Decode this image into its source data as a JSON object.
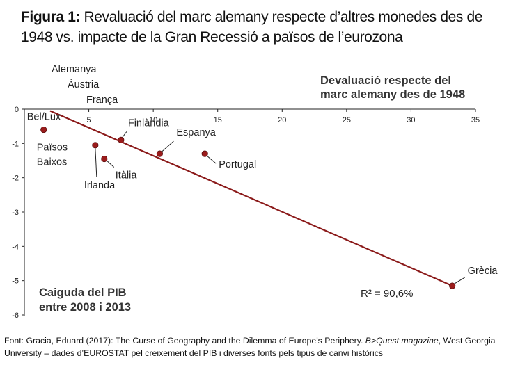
{
  "title": {
    "lead": "Figura 1:",
    "text": "Revaluació del marc alemany respecte d’altres monedes des de 1948 vs. impacte de la Gran Recessió a països de l’eurozona"
  },
  "source": {
    "part1": "Font: Gracia, Eduard (2017): The Curse of Geography and the Dilemma of Europe’s Periphery.",
    "italic": "B>Quest magazine",
    "part2": ", West Georgia University – dades d’EUROSTAT pel creixement del PIB i diverses fonts pels tipus de canvi històrics"
  },
  "chart_data": {
    "type": "scatter",
    "xlabel": "Devaluació respecte del marc alemany des de 1948",
    "ylabel": "Caiguda del PIB entre 2008 i 2013",
    "xlim": [
      0,
      35
    ],
    "ylim": [
      -6,
      0
    ],
    "x_ticks": [
      5,
      10,
      15,
      20,
      25,
      30,
      35
    ],
    "y_ticks": [
      0,
      -1,
      -2,
      -3,
      -4,
      -5,
      -6
    ],
    "points": [
      {
        "label": "Bel/Lux",
        "x": 1.5,
        "y": -0.6
      },
      {
        "label": "Països Baixos",
        "x": 1.5,
        "y": -0.6
      },
      {
        "label": "Finlàndia",
        "x": 7.5,
        "y": -0.9
      },
      {
        "label": "Irlanda",
        "x": 5.5,
        "y": -1.05
      },
      {
        "label": "Itàlia",
        "x": 6.2,
        "y": -1.45
      },
      {
        "label": "Espanya",
        "x": 10.5,
        "y": -1.3
      },
      {
        "label": "Portugal",
        "x": 14.0,
        "y": -1.3
      },
      {
        "label": "Grècia",
        "x": 33.2,
        "y": -5.15
      }
    ],
    "off_axis_labels": [
      "Alemanya",
      "Àustria",
      "França"
    ],
    "trendline": {
      "x": [
        2,
        33.2
      ],
      "y": [
        -0.05,
        -5.15
      ]
    },
    "annotation": "R² = 90,6%",
    "point_color": "#9b1c1c",
    "line_color": "#8b1a1a"
  }
}
